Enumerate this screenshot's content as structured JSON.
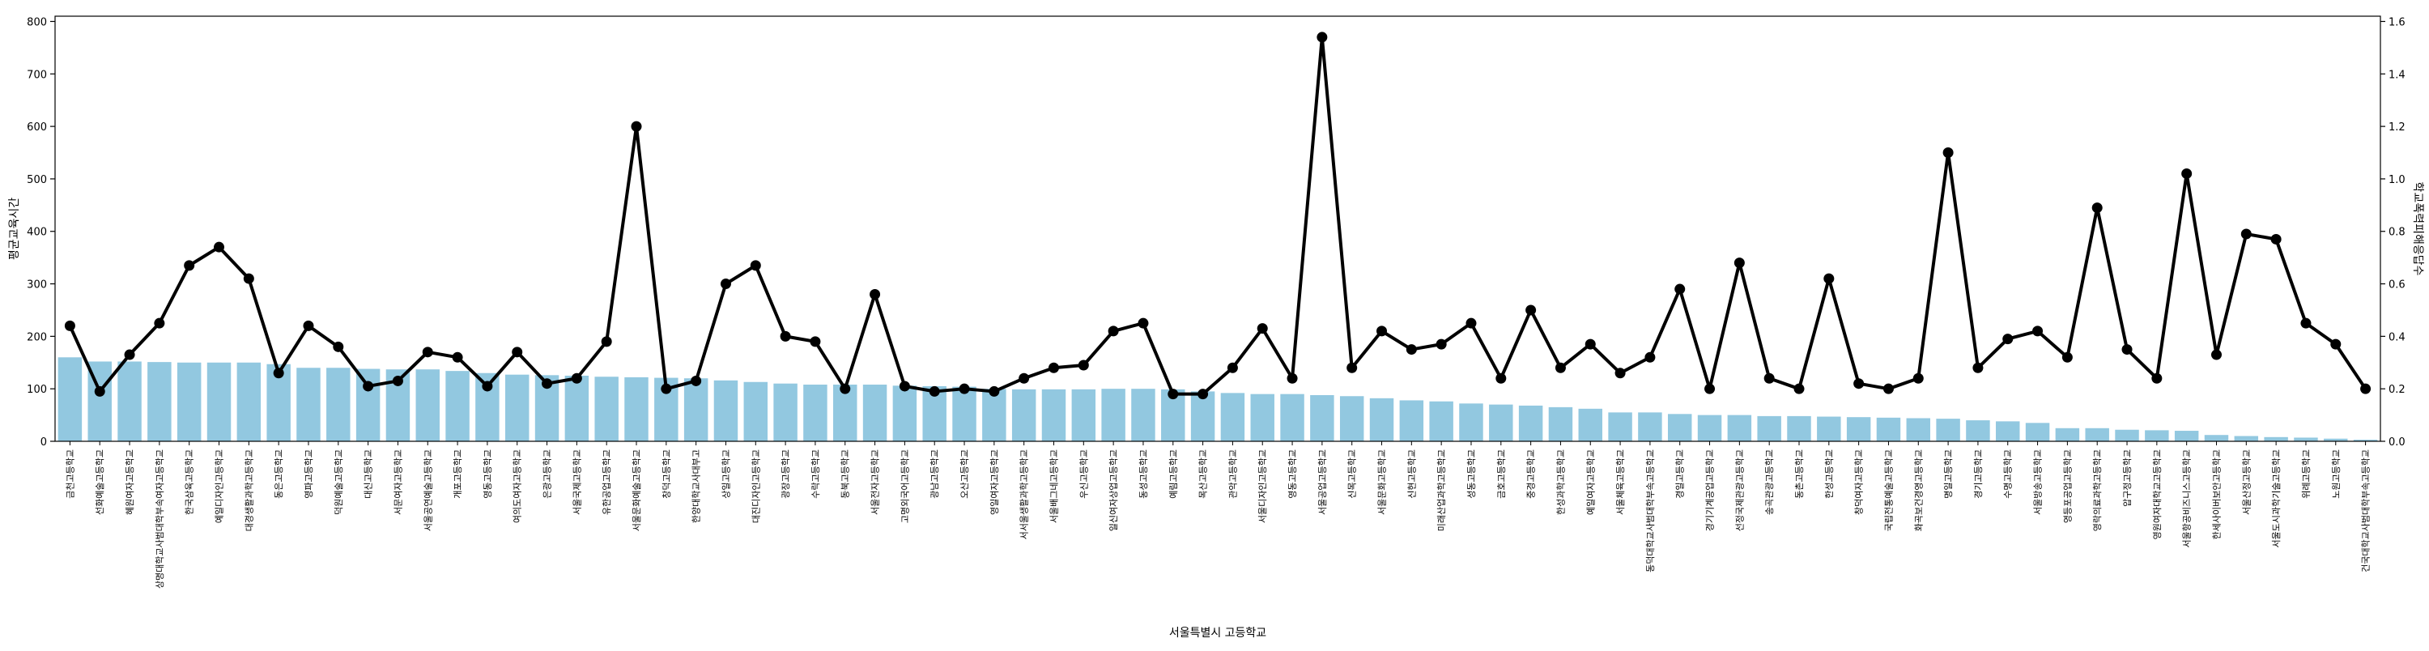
{
  "chart_data": {
    "type": "bar",
    "title": "",
    "xlabel": "서울특별시 고등학교",
    "ylabel": "평균교육시간",
    "y2label": "학교폭력피해응답수",
    "ylim": [
      0,
      810
    ],
    "y2lim": [
      0,
      1.62
    ],
    "yticks": [
      0,
      100,
      200,
      300,
      400,
      500,
      600,
      700,
      800
    ],
    "y2ticks": [
      0.0,
      0.2,
      0.4,
      0.6,
      0.8,
      1.0,
      1.2,
      1.4,
      1.6
    ],
    "ytick_labels": [
      "0",
      "100",
      "200",
      "300",
      "400",
      "500",
      "600",
      "700",
      "800"
    ],
    "y2tick_labels": [
      "0.0",
      "0.2",
      "0.4",
      "0.6",
      "0.8",
      "1.0",
      "1.2",
      "1.4",
      "1.6"
    ],
    "grid": false,
    "colors": {
      "bar": "#92c8e0",
      "line": "#000000",
      "axis": "#000000"
    },
    "categories": [
      "금천고등학교",
      "선화예술고등학교",
      "혜원여자고등학교",
      "상명대학교사범대학부속여자고등학교",
      "한국삼육고등학교",
      "예일디자인고등학교",
      "대경생활과학고등학교",
      "동은고등학교",
      "영파고등학교",
      "덕원예술고등학교",
      "대신고등학교",
      "서문여자고등학교",
      "서울공연예술고등학교",
      "개포고등학교",
      "영동고등학교",
      "여의도여자고등학교",
      "은광고등학교",
      "서울국제고등학교",
      "유한공업고등학교",
      "서울문화예술고등학교",
      "창덕고등학교",
      "한양대학교사대부고",
      "상일고등학교",
      "대진디자인고등학교",
      "광장고등학교",
      "수락고등학교",
      "동북고등학교",
      "서울전자고등학교",
      "고명외국어고등학교",
      "광남고등학교",
      "오산고등학교",
      "영일여자고등학교",
      "서서울생활과학고등학교",
      "서울배그네고등학교",
      "우신고등학교",
      "일신여자상업고등학교",
      "동성고등학교",
      "예림고등학교",
      "목산고등학교",
      "관악고등학교",
      "서울디자인고등학교",
      "영동고등학교",
      "서울공업고등학교",
      "신목고등학교",
      "서울문화고등학교",
      "신현고등학교",
      "미래산업과학고등학교",
      "성동고등학교",
      "금호고등학교",
      "중경고등학교",
      "한성과학고등학교",
      "예일여자고등학교",
      "서울체육고등학교",
      "동덕대학교사범대학부속고등학교",
      "경일고등학교",
      "경기기계공업고등학교",
      "선정국제관광고등학교",
      "송곡관광고등학교",
      "동촌고등학교",
      "한성고등학교",
      "창덕여자고등학교",
      "국립전통예술고등학교",
      "화곡보건경영고등학교",
      "명일고등학교",
      "경기고등학교",
      "수명고등학교",
      "서울방송고등학교",
      "영등포공업고등학교",
      "영락의료과학고등학교",
      "압구정고등학교",
      "영원여자대학교고등학교",
      "서울항공비즈니스고등학교",
      "한세사이버보안고등학교",
      "서울산정고등학교",
      "서울도시과학기술고등학교",
      "위례고등학교",
      "노원고등학교",
      "건국대학교사범대학부속고등학교"
    ],
    "series": [
      {
        "axis": "left",
        "type": "bar",
        "values": [
          160,
          152,
          152,
          151,
          150,
          150,
          150,
          147,
          140,
          140,
          138,
          137,
          137,
          134,
          130,
          127,
          126,
          125,
          123,
          122,
          121,
          120,
          116,
          113,
          110,
          108,
          108,
          108,
          106,
          105,
          104,
          100,
          99,
          99,
          99,
          100,
          100,
          99,
          95,
          92,
          90,
          90,
          88,
          86,
          82,
          78,
          76,
          72,
          70,
          68,
          65,
          62,
          55,
          55,
          52,
          50,
          50,
          48,
          48,
          47,
          46,
          45,
          44,
          43,
          40,
          38,
          35,
          25,
          25,
          22,
          21,
          20,
          12,
          10,
          8,
          7,
          5,
          3
        ]
      },
      {
        "axis": "right",
        "type": "line",
        "values": [
          0.44,
          0.19,
          0.33,
          0.45,
          0.67,
          0.74,
          0.62,
          0.26,
          0.44,
          0.36,
          0.21,
          0.23,
          0.34,
          0.32,
          0.21,
          0.34,
          0.22,
          0.24,
          0.38,
          1.2,
          0.2,
          0.23,
          0.6,
          0.67,
          0.4,
          0.38,
          0.2,
          0.56,
          0.21,
          0.19,
          0.2,
          0.19,
          0.24,
          0.28,
          0.29,
          0.42,
          0.45,
          0.18,
          0.18,
          0.28,
          0.43,
          0.24,
          1.54,
          0.28,
          0.42,
          0.35,
          0.37,
          0.45,
          0.24,
          0.5,
          0.28,
          0.37,
          0.26,
          0.32,
          0.58,
          0.2,
          0.68,
          0.24,
          0.2,
          0.62,
          0.22,
          0.2,
          0.24,
          1.1,
          0.28,
          0.39,
          0.42,
          0.32,
          0.89,
          0.35,
          0.24,
          1.02,
          0.33,
          0.79,
          0.77,
          0.45,
          0.37,
          0.2
        ]
      }
    ]
  }
}
